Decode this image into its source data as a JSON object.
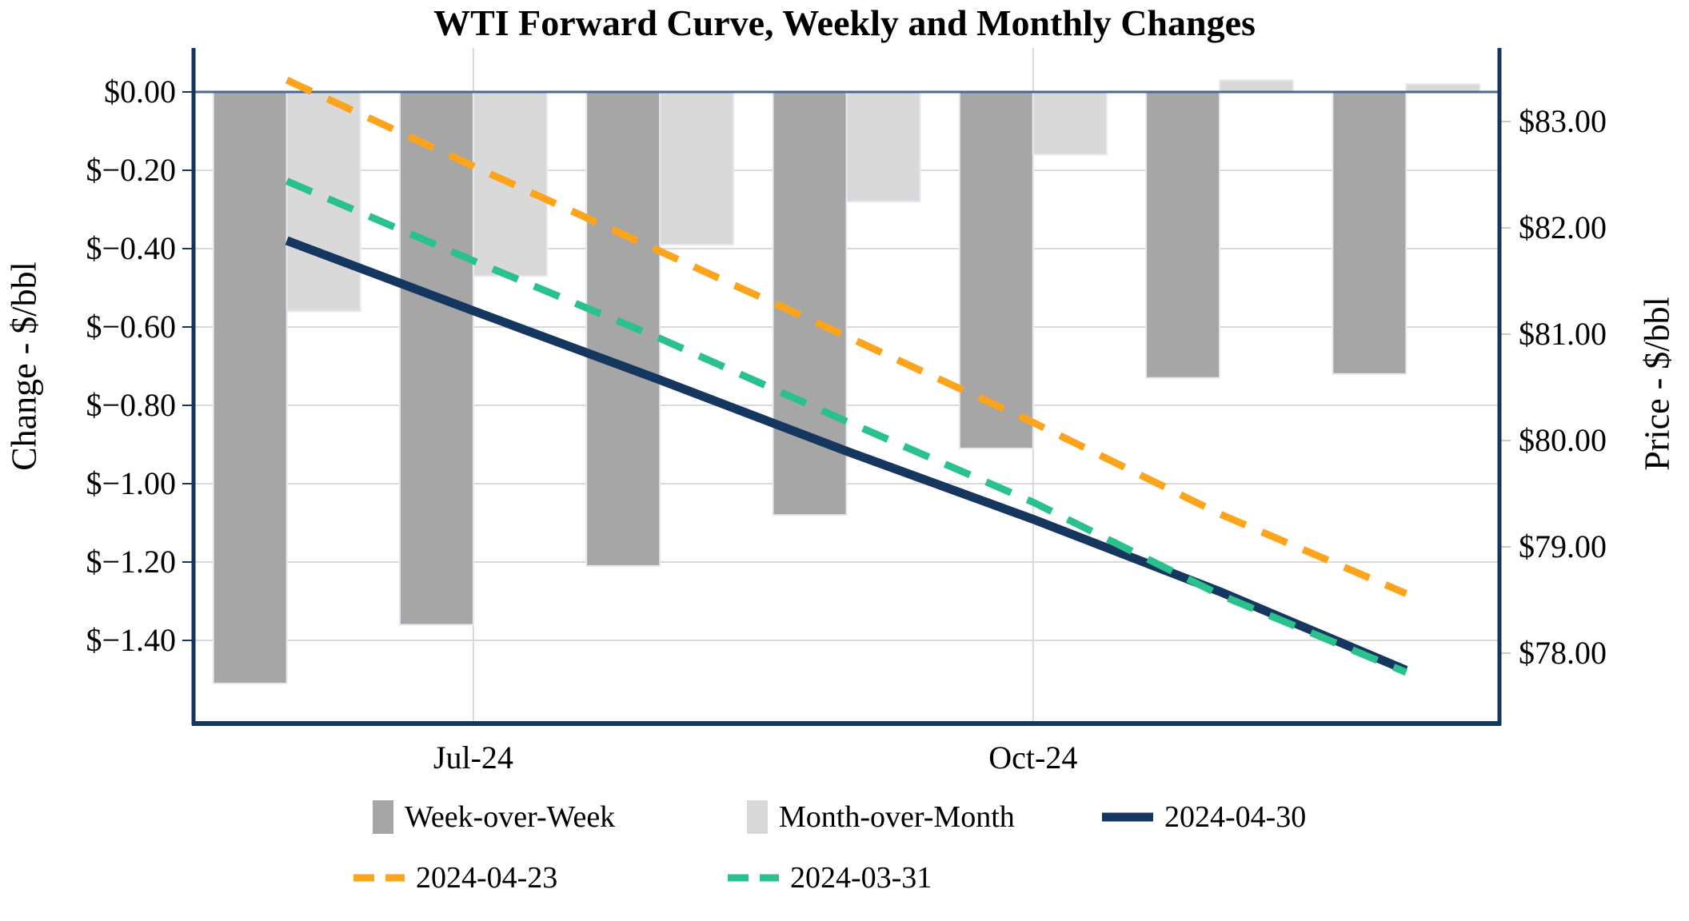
{
  "chart_data": {
    "type": "combo",
    "title": "WTI Forward Curve, Weekly and Monthly Changes",
    "n_points": 7,
    "x_ticks": [
      {
        "slot": 1,
        "label": "Jul-24"
      },
      {
        "slot": 4,
        "label": "Oct-24"
      }
    ],
    "left_axis": {
      "label": "Change - $/bbl",
      "range": [
        0.11,
        -1.61
      ],
      "ticks": [
        {
          "v": 0.0,
          "label": "$0.00"
        },
        {
          "v": -0.2,
          "label": "$−0.20"
        },
        {
          "v": -0.4,
          "label": "$−0.40"
        },
        {
          "v": -0.6,
          "label": "$−0.60"
        },
        {
          "v": -0.8,
          "label": "$−0.80"
        },
        {
          "v": -1.0,
          "label": "$−1.00"
        },
        {
          "v": -1.2,
          "label": "$−1.20"
        },
        {
          "v": -1.4,
          "label": "$−1.40"
        }
      ]
    },
    "right_axis": {
      "label": "Price - $/bbl",
      "range": [
        83.69,
        77.34
      ],
      "ticks": [
        {
          "v": 83,
          "label": "$83.00"
        },
        {
          "v": 82,
          "label": "$82.00"
        },
        {
          "v": 81,
          "label": "$81.00"
        },
        {
          "v": 80,
          "label": "$80.00"
        },
        {
          "v": 79,
          "label": "$79.00"
        },
        {
          "v": 78,
          "label": "$78.00"
        }
      ]
    },
    "series": [
      {
        "name": "Week-over-Week",
        "kind": "bar",
        "axis": "left",
        "color": "#a6a6a6",
        "values": [
          -1.51,
          -1.36,
          -1.21,
          -1.08,
          -0.91,
          -0.73,
          -0.72
        ]
      },
      {
        "name": "Month-over-Month",
        "kind": "bar",
        "axis": "left",
        "color": "#d9d9d9",
        "values": [
          -0.56,
          -0.47,
          -0.39,
          -0.28,
          -0.16,
          0.03,
          0.02
        ]
      },
      {
        "name": "2024-04-30",
        "kind": "line",
        "style": "solid",
        "axis": "right",
        "color": "#15375f",
        "values": [
          81.88,
          81.22,
          80.57,
          79.9,
          79.26,
          78.58,
          77.84
        ]
      },
      {
        "name": "2024-04-23",
        "kind": "line",
        "style": "dashed",
        "axis": "right",
        "color": "#fba41c",
        "values": [
          83.39,
          82.58,
          81.78,
          80.98,
          80.17,
          79.31,
          78.56
        ]
      },
      {
        "name": "2024-03-31",
        "kind": "line",
        "style": "dashed",
        "axis": "right",
        "color": "#2bc18c",
        "values": [
          82.44,
          81.69,
          80.96,
          80.18,
          79.42,
          78.55,
          77.82
        ]
      }
    ],
    "grid": {
      "h_color": "#d9d9d9",
      "zero_line_color": "#4a6a94",
      "frame_color": "#14365c",
      "grid_on": true
    },
    "legend_position": "bottom"
  }
}
